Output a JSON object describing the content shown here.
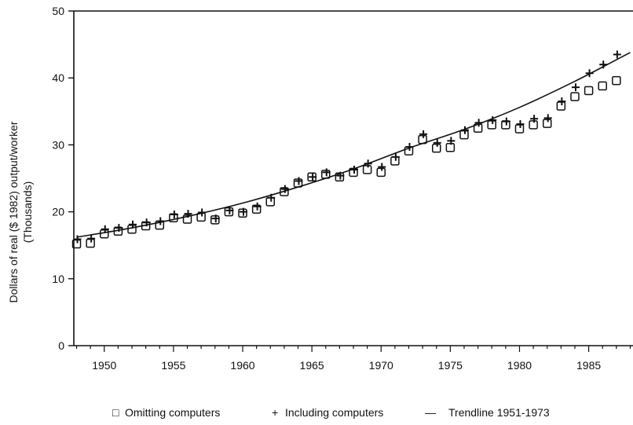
{
  "chart_data": {
    "type": "scatter",
    "title": "",
    "xlabel": "",
    "ylabel": "Dollars of real ($ 1982) output/worker",
    "ylabel_sub": "(Thousands)",
    "xlim": [
      1947.8,
      1988.2
    ],
    "ylim": [
      0,
      50
    ],
    "x_ticks": [
      1950,
      1955,
      1960,
      1965,
      1970,
      1975,
      1980,
      1985
    ],
    "y_ticks": [
      0,
      10,
      20,
      30,
      40,
      50
    ],
    "grid": false,
    "legend_position": "bottom",
    "x": [
      1948,
      1949,
      1950,
      1951,
      1952,
      1953,
      1954,
      1955,
      1956,
      1957,
      1958,
      1959,
      1960,
      1961,
      1962,
      1963,
      1964,
      1965,
      1966,
      1967,
      1968,
      1969,
      1970,
      1971,
      1972,
      1973,
      1974,
      1975,
      1976,
      1977,
      1978,
      1979,
      1980,
      1981,
      1982,
      1983,
      1984,
      1985,
      1986,
      1987
    ],
    "series": [
      {
        "name": "Omitting computers",
        "marker": "square",
        "values": [
          15.2,
          15.3,
          16.7,
          17.1,
          17.4,
          17.9,
          18.0,
          19.1,
          18.9,
          19.2,
          18.8,
          20.0,
          19.8,
          20.4,
          21.5,
          23.0,
          24.3,
          25.2,
          25.6,
          25.2,
          25.9,
          26.3,
          25.9,
          27.6,
          29.1,
          30.8,
          29.5,
          29.6,
          31.5,
          32.5,
          33.0,
          33.0,
          32.4,
          33.0,
          33.2,
          35.8,
          37.2,
          38.1,
          38.8,
          39.6
        ]
      },
      {
        "name": "Including computers",
        "marker": "plus",
        "values": [
          15.9,
          16.0,
          17.4,
          17.6,
          18.1,
          18.4,
          18.6,
          19.6,
          19.7,
          19.9,
          19.0,
          20.2,
          20.0,
          20.8,
          22.1,
          23.4,
          24.6,
          25.2,
          25.9,
          25.4,
          26.3,
          27.2,
          26.7,
          28.2,
          29.7,
          31.6,
          30.3,
          30.6,
          32.2,
          33.3,
          33.7,
          33.5,
          33.1,
          33.9,
          34.0,
          36.5,
          38.6,
          40.7,
          42.0,
          43.5
        ]
      },
      {
        "name": "Trendline 1951-1973",
        "marker": "line",
        "x": [
          1948,
          1952,
          1956,
          1960,
          1964,
          1968,
          1972,
          1976,
          1980,
          1984,
          1988
        ],
        "values": [
          16.2,
          17.6,
          19.3,
          21.3,
          23.7,
          26.4,
          29.5,
          32.3,
          35.6,
          39.5,
          43.8
        ]
      }
    ]
  },
  "legend": {
    "omitting_label": "Omitting computers",
    "including_label": "Including computers",
    "trendline_label": "Trendline 1951-1973",
    "square_symbol": "□",
    "plus_symbol": "+",
    "dash_symbol": "—"
  },
  "colors": {
    "ink": "#111111",
    "background": "#ffffff"
  }
}
